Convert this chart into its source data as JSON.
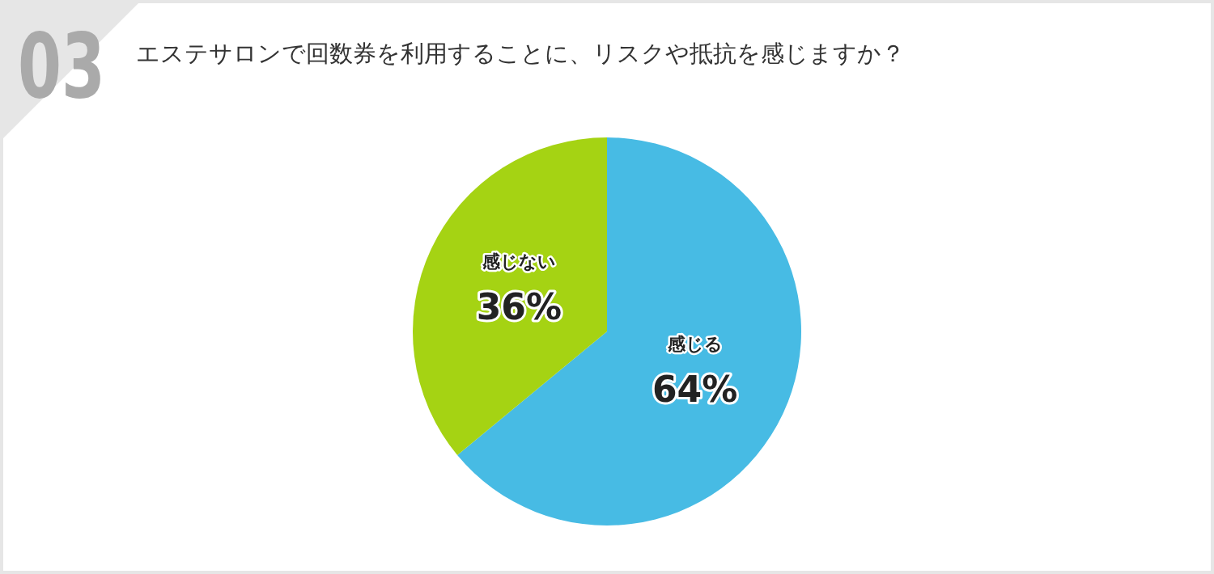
{
  "chart_data": {
    "type": "pie",
    "title": "エステサロンで回数券を利用することに、リスクや抵抗を感じますか？",
    "annotations": [
      "03"
    ],
    "categories": [
      "感じる",
      "感じない"
    ],
    "values": [
      64,
      36
    ],
    "colors": [
      "#47bbe4",
      "#a5d313"
    ],
    "value_labels": [
      "64%",
      "36%"
    ]
  }
}
